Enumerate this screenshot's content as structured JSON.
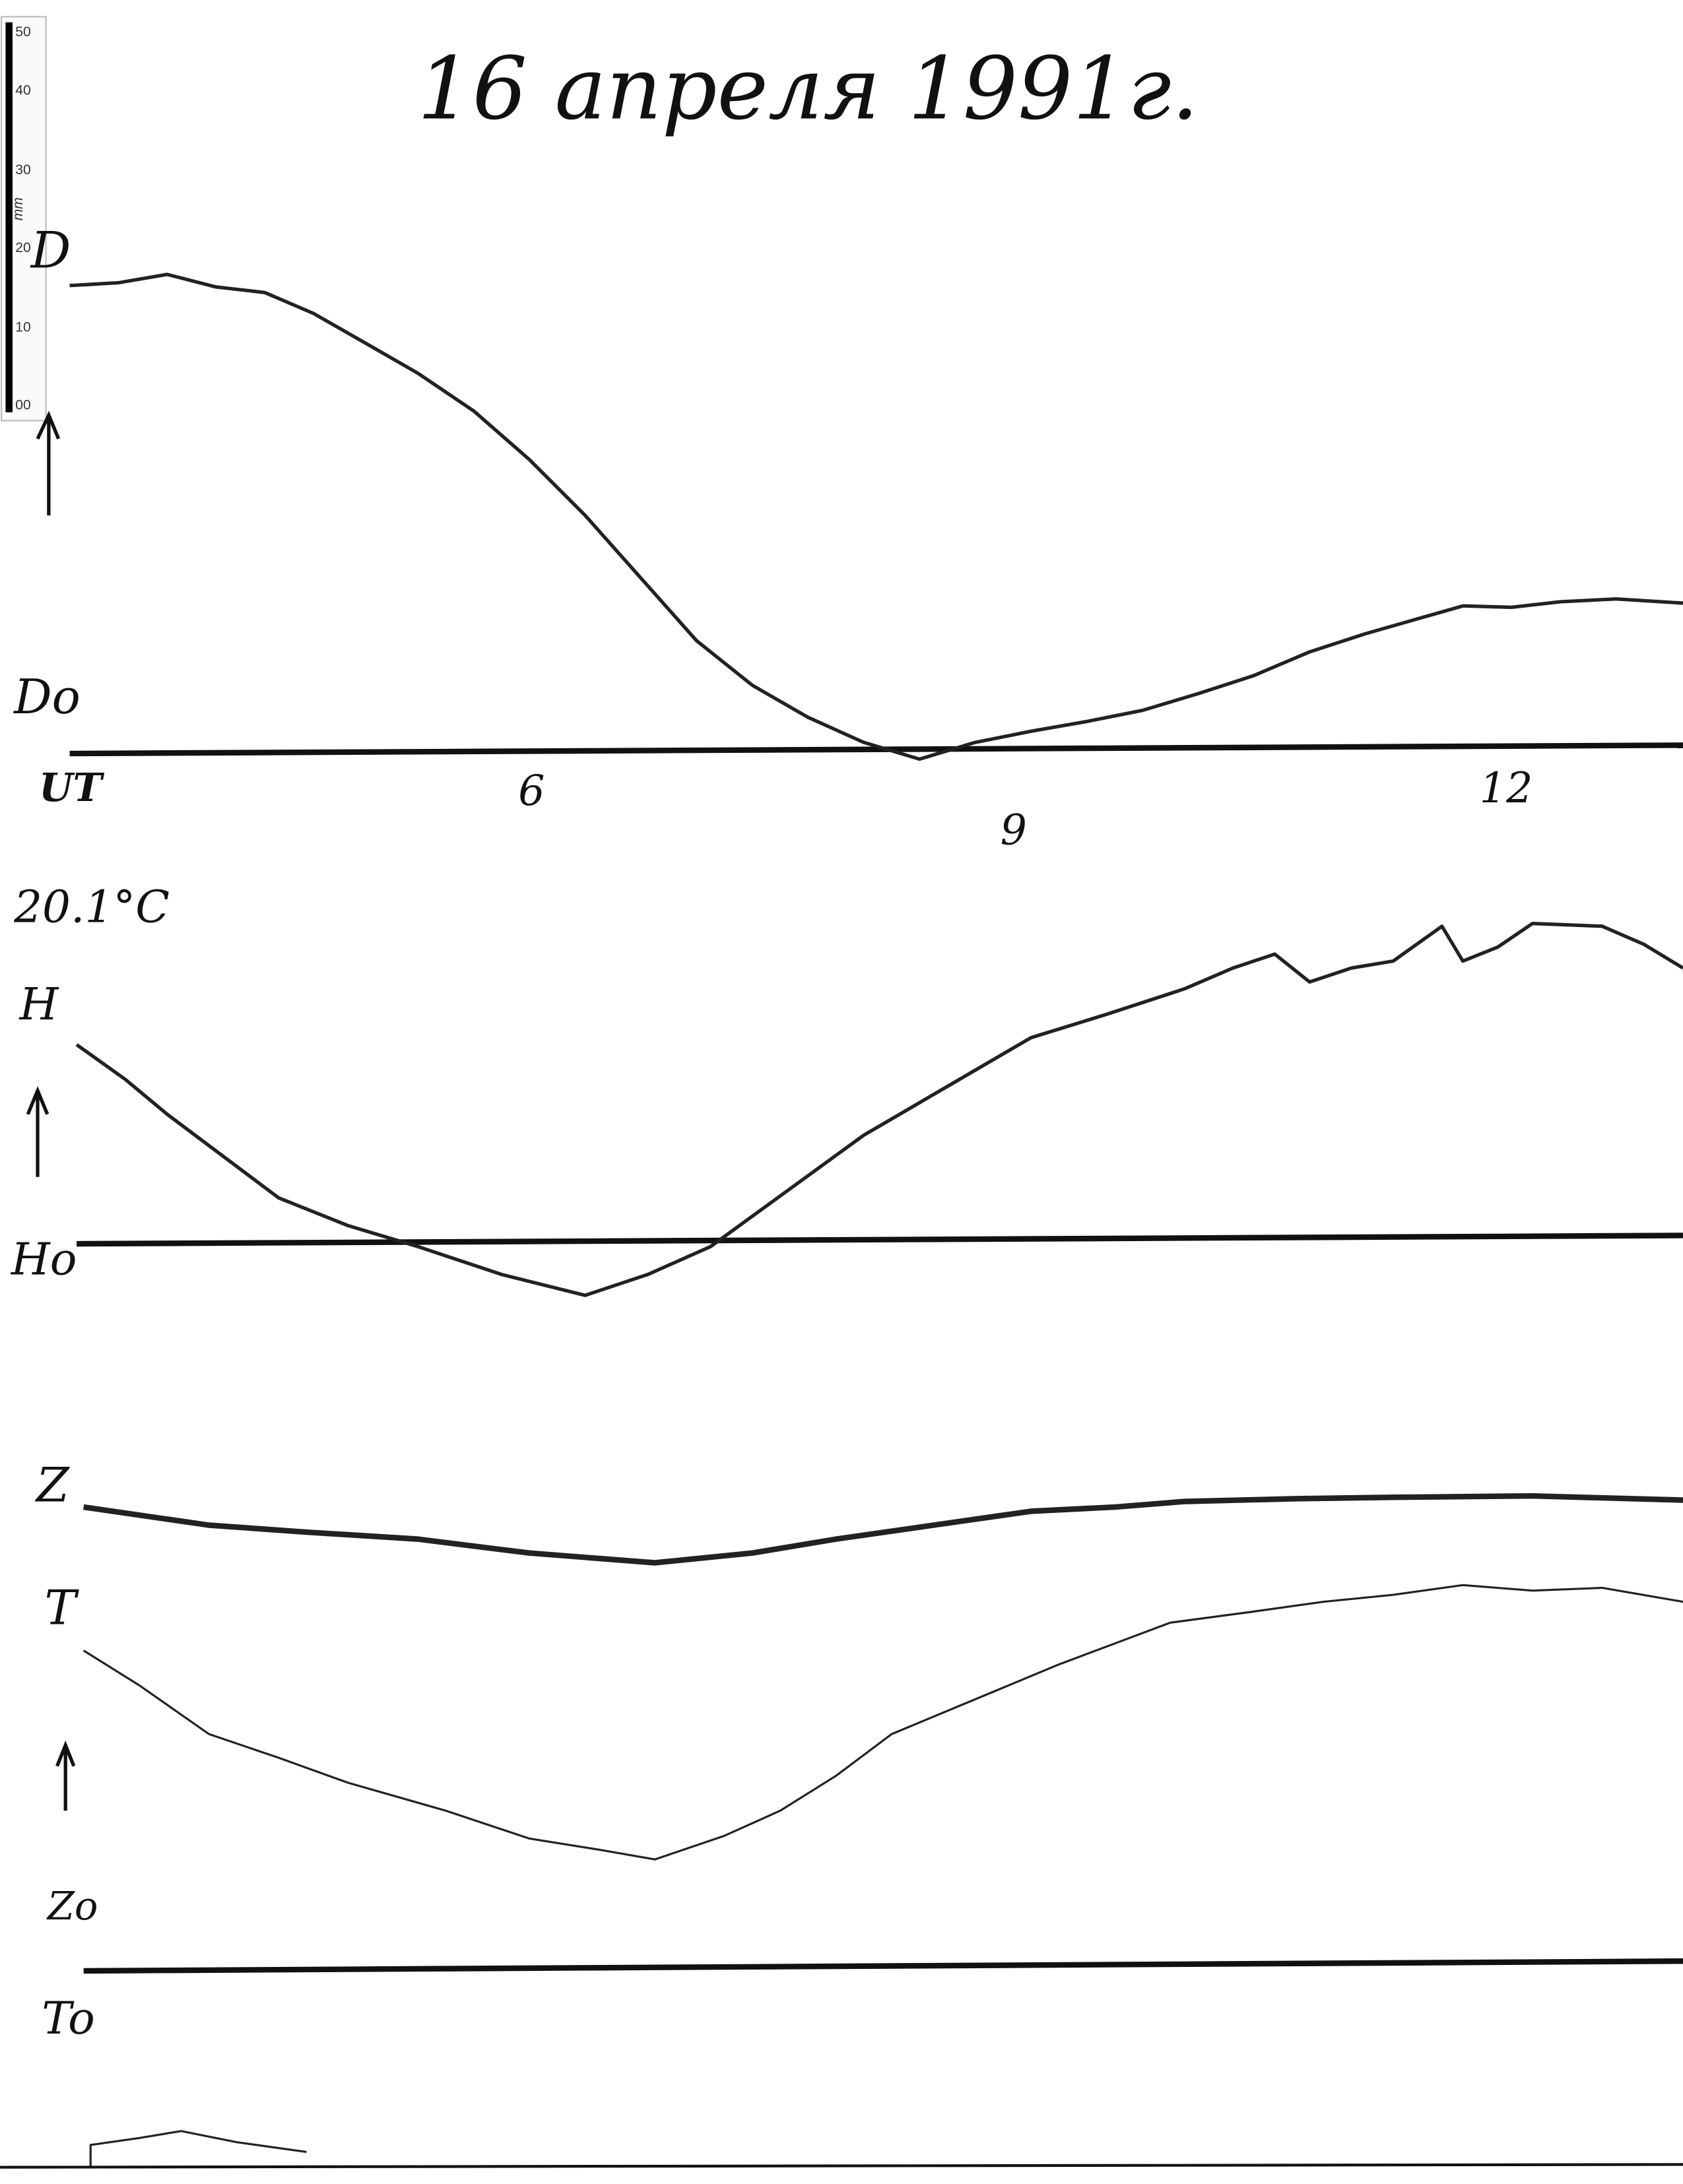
{
  "title": "16 апреля 1991г.",
  "scale": {
    "ticks": [
      "50",
      "40",
      "30",
      "20",
      "10",
      "00"
    ],
    "unit": "mm"
  },
  "labels": {
    "d": "D",
    "d0": "Do",
    "ut": "UT",
    "hour_6": "6",
    "hour_9": "9",
    "hour_12": "12",
    "temperature": "20.1°C",
    "h": "H",
    "h0": "Ho",
    "z": "Z",
    "t": "T",
    "z0": "Zo",
    "t0": "To"
  }
}
